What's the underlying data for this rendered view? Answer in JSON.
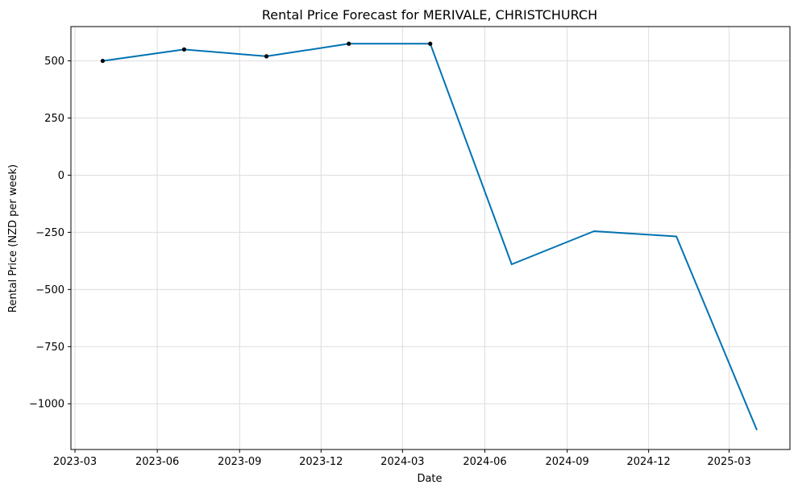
{
  "chart_data": {
    "type": "line",
    "title": "Rental Price Forecast for MERIVALE, CHRISTCHURCH",
    "xlabel": "Date",
    "ylabel": "Rental Price (NZD per week)",
    "x_ticks": [
      "2023-03",
      "2023-06",
      "2023-09",
      "2023-12",
      "2024-03",
      "2024-06",
      "2024-09",
      "2024-12",
      "2025-03"
    ],
    "y_ticks": [
      500,
      250,
      0,
      -250,
      -500,
      -750,
      -1000
    ],
    "y_tick_labels": [
      "500",
      "250",
      "0",
      "−250",
      "−500",
      "−750",
      "−1000"
    ],
    "xlim": [
      "2023-03-01",
      "2025-04-01"
    ],
    "ylim": [
      -1200,
      650
    ],
    "grid": true,
    "line_color": "#0072B2",
    "marker_color": "#000000",
    "series": [
      {
        "values": [
          {
            "x": "2023-04-01",
            "y": 500
          },
          {
            "x": "2023-07-01",
            "y": 550
          },
          {
            "x": "2023-10-01",
            "y": 520
          },
          {
            "x": "2024-01-01",
            "y": 575
          },
          {
            "x": "2024-04-01",
            "y": 575
          },
          {
            "x": "2024-07-01",
            "y": -390
          },
          {
            "x": "2024-10-01",
            "y": -245
          },
          {
            "x": "2025-01-01",
            "y": -268
          },
          {
            "x": "2025-04-01",
            "y": -1115
          }
        ]
      }
    ],
    "observed": [
      {
        "x": "2023-04-01",
        "y": 500
      },
      {
        "x": "2023-07-01",
        "y": 550
      },
      {
        "x": "2023-10-01",
        "y": 520
      },
      {
        "x": "2024-01-01",
        "y": 575
      },
      {
        "x": "2024-04-01",
        "y": 575
      }
    ]
  }
}
